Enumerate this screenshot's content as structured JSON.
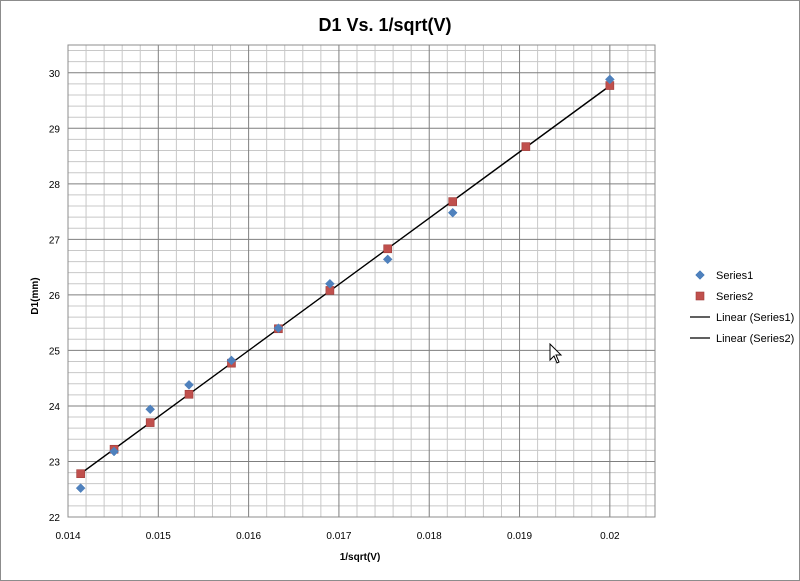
{
  "chart_data": {
    "type": "scatter",
    "title": "D1 Vs. 1/sqrt(V)",
    "xlabel": "1/sqrt(V)",
    "ylabel": "D1(mm)",
    "xlim": [
      0.014,
      0.0205
    ],
    "ylim": [
      22,
      30.5
    ],
    "xticks": [
      0.014,
      0.015,
      0.016,
      0.017,
      0.018,
      0.019,
      0.02
    ],
    "xtick_labels": [
      "0.014",
      "0.015",
      "0.016",
      "0.017",
      "0.018",
      "0.019",
      "0.02"
    ],
    "yticks": [
      22,
      23,
      24,
      25,
      26,
      27,
      28,
      29,
      30
    ],
    "ytick_labels": [
      "22",
      "23",
      "24",
      "25",
      "26",
      "27",
      "28",
      "29",
      "30"
    ],
    "grid": true,
    "legend_position": "right",
    "series": [
      {
        "name": "Series1",
        "marker": "diamond",
        "color": "#4f81bd",
        "x": [
          0.01414,
          0.01451,
          0.01491,
          0.01534,
          0.01581,
          0.01633,
          0.0169,
          0.01754,
          0.01826,
          0.02
        ],
        "y": [
          22.52,
          23.18,
          23.94,
          24.38,
          24.82,
          25.4,
          26.2,
          26.64,
          27.48,
          29.88
        ]
      },
      {
        "name": "Series2",
        "marker": "square",
        "color": "#c0504d",
        "x": [
          0.01414,
          0.01451,
          0.01491,
          0.01534,
          0.01581,
          0.01633,
          0.0169,
          0.01754,
          0.01826,
          0.01907,
          0.02
        ],
        "y": [
          22.78,
          23.22,
          23.7,
          24.21,
          24.77,
          25.39,
          26.08,
          26.83,
          27.68,
          28.67,
          29.77
        ]
      }
    ],
    "trendlines": [
      {
        "name": "Linear (Series1)",
        "of": "Series1",
        "color": "#000000"
      },
      {
        "name": "Linear (Series2)",
        "of": "Series2",
        "color": "#000000"
      }
    ]
  },
  "icons": {
    "cursor": "mouse-pointer-icon"
  }
}
